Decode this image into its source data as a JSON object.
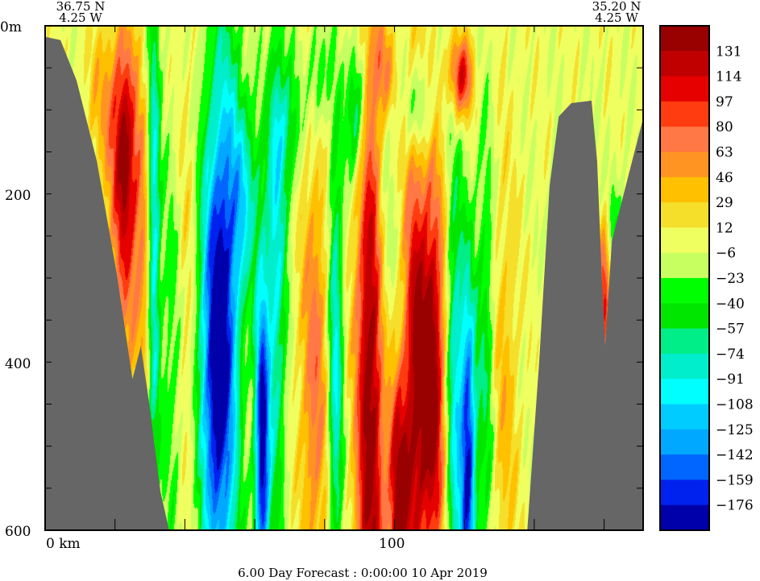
{
  "chart_data": {
    "type": "heatmap",
    "subtype": "filled-contour-section",
    "title": "6.00 Day Forecast :  0:00:00  10 Apr 2019",
    "start_point": {
      "lat": "36.75 N",
      "lon": "4.25 W"
    },
    "end_point": {
      "lat": "35.20 N",
      "lon": "4.25 W"
    },
    "xlabel": "km",
    "x_tick_labels": [
      "0 km",
      "100"
    ],
    "x_ticks_km": [
      0,
      20,
      40,
      60,
      80,
      100,
      120,
      140,
      160
    ],
    "xlim": [
      0,
      171
    ],
    "y_tick_labels": [
      "0m",
      "200",
      "400",
      "600"
    ],
    "y_tick_values": [
      0,
      200,
      400,
      600
    ],
    "y_minor_step": 50,
    "ylim": [
      0,
      600
    ],
    "colorbar": {
      "labels": [
        "131",
        "114",
        "97",
        "80",
        "63",
        "46",
        "29",
        "12",
        "-6",
        "-23",
        "-40",
        "-57",
        "-74",
        "-91",
        "-108",
        "-125",
        "-142",
        "-159",
        "-176"
      ],
      "levels": [
        131,
        114,
        97,
        80,
        63,
        46,
        29,
        12,
        -6,
        -23,
        -40,
        -57,
        -74,
        -91,
        -108,
        -125,
        -142,
        -159,
        -176
      ],
      "colors": [
        "#990000",
        "#c00000",
        "#e60000",
        "#ff3c0f",
        "#ff7845",
        "#ff9422",
        "#ffc000",
        "#f5df2b",
        "#f0ff60",
        "#c8ff60",
        "#00ff00",
        "#00e600",
        "#00ee88",
        "#00eecc",
        "#00ffff",
        "#00ccff",
        "#00a8ff",
        "#0066ff",
        "#0022ee",
        "#0000aa"
      ]
    },
    "land_color": "#666666",
    "bathymetry_left": [
      [
        0,
        13
      ],
      [
        4.4,
        17
      ],
      [
        9,
        65
      ],
      [
        14.8,
        161
      ],
      [
        20.5,
        295
      ],
      [
        25,
        420
      ],
      [
        27.4,
        381
      ],
      [
        29.8,
        449
      ],
      [
        33,
        554
      ],
      [
        35.5,
        600
      ]
    ],
    "bathymetry_right": [
      [
        138,
        600
      ],
      [
        141.4,
        400
      ],
      [
        144.4,
        190
      ],
      [
        147,
        108
      ],
      [
        150.6,
        92
      ],
      [
        156.4,
        89
      ],
      [
        158,
        161
      ],
      [
        159.4,
        305
      ],
      [
        160.3,
        381
      ],
      [
        162.2,
        257
      ],
      [
        164.5,
        218
      ],
      [
        168,
        161
      ],
      [
        171,
        113
      ]
    ],
    "anomalies_km_m_value_sxkm_szm": [
      [
        23,
        200,
        110,
        2.5,
        120
      ],
      [
        21,
        120,
        60,
        3,
        80
      ],
      [
        28,
        300,
        50,
        2,
        150
      ],
      [
        31,
        250,
        -110,
        1.2,
        200
      ],
      [
        37,
        400,
        -40,
        3,
        200
      ],
      [
        40,
        350,
        40,
        2,
        200
      ],
      [
        48,
        400,
        -150,
        3,
        200
      ],
      [
        52,
        350,
        -120,
        3,
        250
      ],
      [
        62,
        500,
        -190,
        1.5,
        150
      ],
      [
        66,
        300,
        -90,
        2,
        200
      ],
      [
        57,
        200,
        -80,
        3,
        80
      ],
      [
        69,
        120,
        -60,
        3,
        60
      ],
      [
        77,
        420,
        70,
        3,
        200
      ],
      [
        83,
        400,
        -100,
        1.5,
        200
      ],
      [
        93,
        450,
        150,
        3,
        300
      ],
      [
        89,
        100,
        -90,
        2,
        60
      ],
      [
        97,
        250,
        -40,
        2,
        150
      ],
      [
        101,
        560,
        140,
        2,
        100
      ],
      [
        110,
        420,
        160,
        3.5,
        180
      ],
      [
        105,
        420,
        70,
        2,
        250
      ],
      [
        117,
        450,
        -110,
        2,
        200
      ],
      [
        121,
        520,
        -170,
        1.5,
        150
      ],
      [
        126,
        400,
        -60,
        2,
        200
      ],
      [
        131,
        450,
        40,
        3,
        200
      ],
      [
        119,
        60,
        110,
        2.5,
        35
      ],
      [
        107,
        100,
        -60,
        3,
        40
      ],
      [
        97,
        50,
        60,
        2,
        40
      ],
      [
        78,
        60,
        -50,
        2,
        50
      ],
      [
        160,
        320,
        100,
        1.2,
        60
      ],
      [
        163,
        250,
        -40,
        1.5,
        60
      ],
      [
        15,
        80,
        30,
        3,
        60
      ]
    ]
  }
}
